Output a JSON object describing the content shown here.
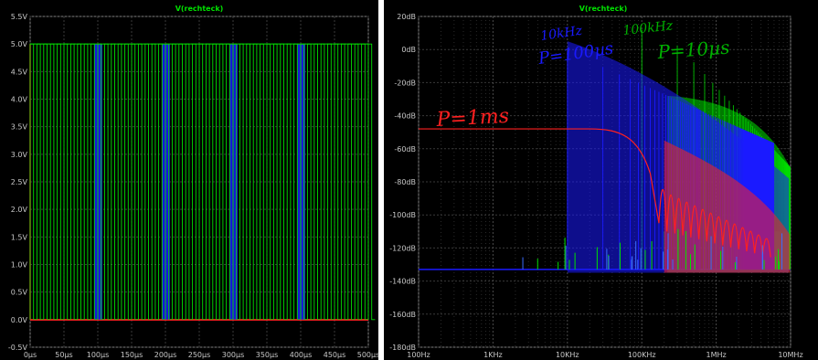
{
  "chart_data": [
    {
      "type": "line",
      "title": "V(rechteck)",
      "x_unit": "us",
      "y_unit": "V",
      "xlim": [
        0,
        500
      ],
      "ylim": [
        -0.5,
        5.5
      ],
      "x_ticks": [
        "0µs",
        "50µs",
        "100µs",
        "150µs",
        "200µs",
        "250µs",
        "300µs",
        "350µs",
        "400µs",
        "450µs",
        "500µs"
      ],
      "y_ticks": [
        "-0.5V",
        "0.0V",
        "0.5V",
        "1.0V",
        "1.5V",
        "2.0V",
        "2.5V",
        "3.0V",
        "3.5V",
        "4.0V",
        "4.5V",
        "5.0V",
        "5.5V"
      ],
      "grid": true,
      "background": "#000000",
      "series": [
        {
          "color": "#ff2020",
          "desc": "1 ms period pulse, high over whole view",
          "high": 5.0,
          "low": 0.0,
          "period_us": 1000,
          "segments": [
            [
              0,
              5.0
            ],
            [
              500,
              5.0
            ]
          ]
        },
        {
          "color": "#1a1aff",
          "desc": "100 us period pulse",
          "high": 5.0,
          "low": 0.0,
          "period_us": 100
        },
        {
          "color": "#00e000",
          "desc": "10 us period pulse",
          "high": 5.0,
          "low": 0.0,
          "period_us": 10
        }
      ]
    },
    {
      "type": "line",
      "title": "V(rechteck)",
      "x_scale": "log",
      "xlim": [
        100,
        10000000
      ],
      "ylim": [
        -180,
        20
      ],
      "x_ticks": [
        "100Hz",
        "1KHz",
        "10KHz",
        "100KHz",
        "1MHz",
        "10MHz"
      ],
      "y_ticks": [
        "20dB",
        "0dB",
        "-20dB",
        "-40dB",
        "-60dB",
        "-80dB",
        "-100dB",
        "-120dB",
        "-140dB",
        "-160dB",
        "-180dB"
      ],
      "grid": true,
      "background": "#000000",
      "series": [
        {
          "color": "#ff2020",
          "desc": "spectrum P=1ms",
          "flat_db": -48,
          "corner_hz": 70000,
          "floor_db": -133
        },
        {
          "color": "#1a1aff",
          "desc": "spectrum P=100us",
          "fundamental_hz": 10000,
          "peak_db": 5,
          "floor_db": -133
        },
        {
          "color": "#00e000",
          "desc": "spectrum P=10us",
          "fundamental_hz": 100000,
          "peak_db": 12,
          "floor_db": -133
        }
      ],
      "annotations": [
        {
          "text": "P=1ms",
          "color": "#ff2020"
        },
        {
          "text": "10kHz",
          "color": "#1a1aff"
        },
        {
          "text": "P=100µs",
          "color": "#1a1aff"
        },
        {
          "text": "100kHz",
          "color": "#00b000"
        },
        {
          "text": "P=10µs",
          "color": "#00b000"
        }
      ]
    }
  ]
}
